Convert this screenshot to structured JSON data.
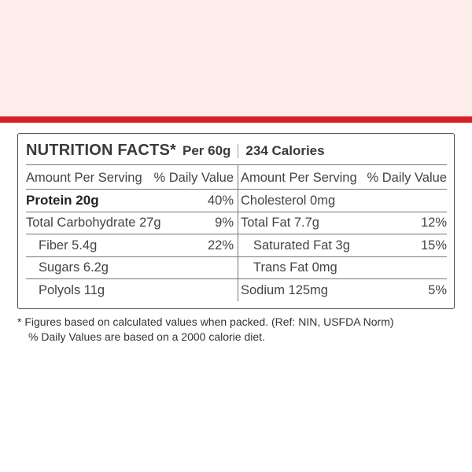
{
  "header": {
    "title": "NUTRITION FACTS*",
    "per": "Per 60g",
    "calories": "234 Calories"
  },
  "left": {
    "col_header": "Amount Per Serving",
    "dv_header": "% Daily Value",
    "rows": [
      {
        "label": "Protein 20g",
        "dv": "40%"
      },
      {
        "label": "Total Carbohydrate 27g",
        "dv": "9%"
      },
      {
        "label": "Fiber 5.4g",
        "dv": "22%"
      },
      {
        "label": "Sugars 6.2g",
        "dv": ""
      },
      {
        "label": "Polyols 11g",
        "dv": ""
      }
    ]
  },
  "right": {
    "col_header": "Amount Per Serving",
    "dv_header": "% Daily Value",
    "rows": [
      {
        "label": "Cholesterol 0mg",
        "dv": ""
      },
      {
        "label": "Total Fat 7.7g",
        "dv": "12%"
      },
      {
        "label": "Saturated Fat 3g",
        "dv": "15%"
      },
      {
        "label": "Trans Fat 0mg",
        "dv": ""
      },
      {
        "label": "Sodium 125mg",
        "dv": "5%"
      }
    ]
  },
  "footnotes": [
    "* Figures based on calculated values when packed. (Ref: NIN, USFDA Norm)",
    "% Daily Values are based on a 2000 calorie diet."
  ],
  "colors": {
    "background": "#fcecea",
    "accent_bar": "#d71f27",
    "panel": "#ffffff"
  }
}
